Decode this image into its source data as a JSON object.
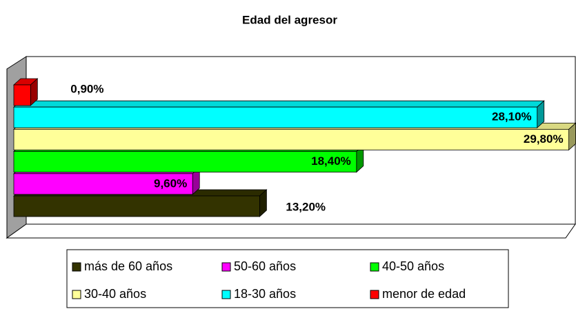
{
  "chart_data": {
    "type": "bar",
    "title": "Edad del agresor",
    "xlim": [
      0,
      30
    ],
    "series": [
      {
        "name": "más de 60 años",
        "color": "#333300",
        "values": [
          13.2
        ],
        "value_labels": [
          "13,20%"
        ]
      },
      {
        "name": "50-60 años",
        "color": "#ff00ff",
        "values": [
          9.6
        ],
        "value_labels": [
          "9,60%"
        ]
      },
      {
        "name": "40-50 años",
        "color": "#00ff00",
        "values": [
          18.4
        ],
        "value_labels": [
          "18,40%"
        ]
      },
      {
        "name": "30-40 años",
        "color": "#ffff99",
        "values": [
          29.8
        ],
        "value_labels": [
          "29,80%"
        ]
      },
      {
        "name": "18-30 años",
        "color": "#00ffff",
        "values": [
          28.1
        ],
        "value_labels": [
          "28,10%"
        ]
      },
      {
        "name": "menor de edad",
        "color": "#ff0000",
        "values": [
          0.9
        ],
        "value_labels": [
          "0,90%"
        ]
      }
    ]
  }
}
